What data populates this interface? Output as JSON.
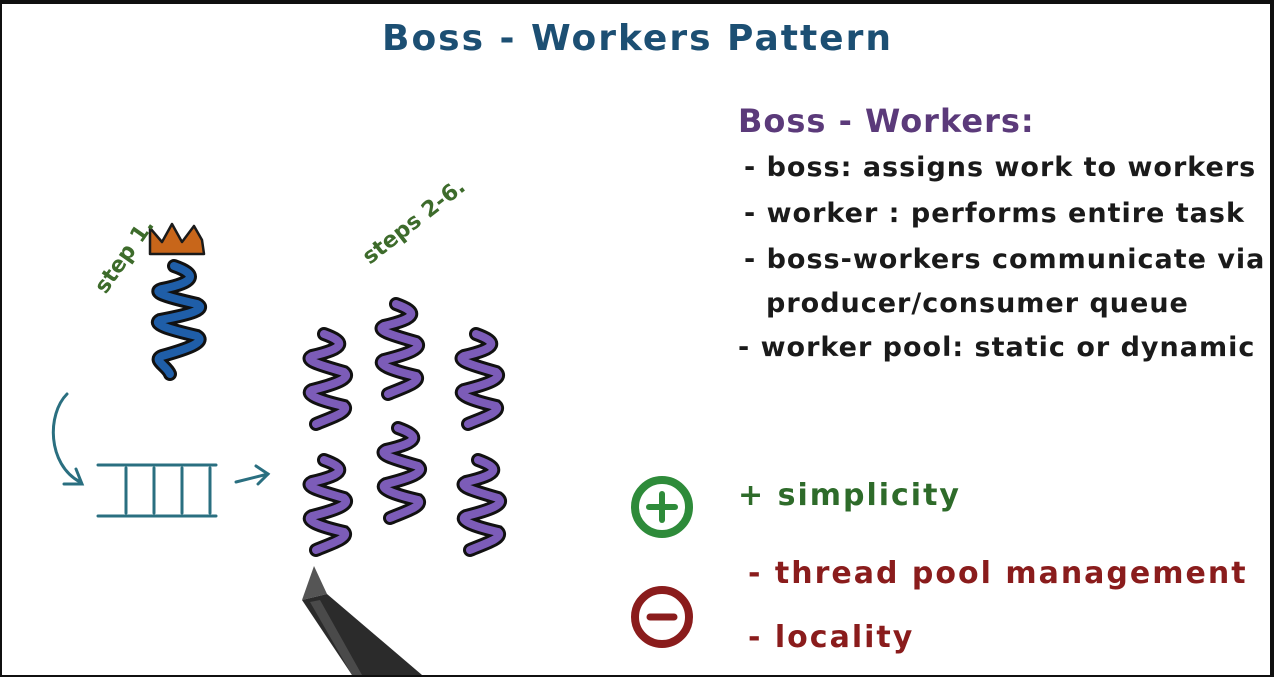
{
  "title": "Boss - Workers Pattern",
  "diagram": {
    "step1_label": "step 1.",
    "steps_label": "steps 2-6."
  },
  "notes": {
    "heading": "Boss - Workers:",
    "items": [
      "- boss: assigns work to workers",
      "- worker : performs entire task",
      "- boss-workers communicate via",
      "producer/consumer queue",
      "- worker pool: static or dynamic"
    ]
  },
  "pros_cons": {
    "pro_symbol": "+",
    "pro": "+ simplicity",
    "con_symbol": "−",
    "cons": [
      "- thread pool management",
      "- locality"
    ]
  },
  "colors": {
    "title": "#1c4f73",
    "heading": "#5b3a7a",
    "boss_thread": "#1f5ea8",
    "crown": "#c8661a",
    "worker_thread": "#7c5cb8",
    "queue": "#2a6f80",
    "pro": "#2e8b3a",
    "con": "#8a1c1c"
  },
  "icons": [
    "crown-icon",
    "plus-circle-icon",
    "minus-circle-icon",
    "pen-icon"
  ]
}
